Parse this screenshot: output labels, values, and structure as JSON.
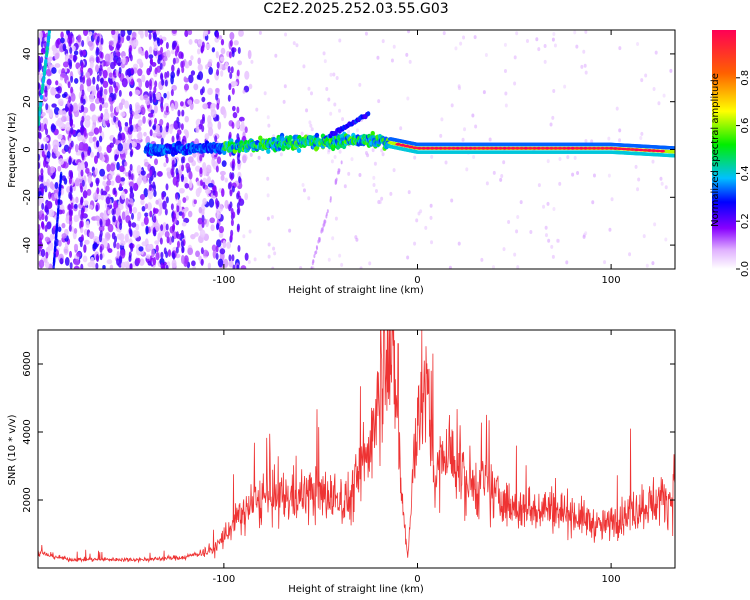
{
  "title": "C2E2.2025.252.03.55.G03",
  "colors": {
    "snr_line": "#ee3333",
    "axis": "#000000",
    "background": "#ffffff"
  },
  "chart_data": [
    {
      "type": "heatmap",
      "title": "C2E2.2025.252.03.55.G03",
      "xlabel": "Height of straight line (km)",
      "ylabel": "Frequency (Hz)",
      "xlim": [
        -196,
        133
      ],
      "ylim": [
        -50,
        50
      ],
      "xticks": [
        -100,
        0,
        100
      ],
      "xtick_labels": [
        "-100",
        "0",
        "100"
      ],
      "yticks": [
        -40,
        -20,
        0,
        20,
        40
      ],
      "ytick_labels": [
        "-40",
        "-20",
        "0",
        "20",
        "40"
      ],
      "colorbar": {
        "label": "Normalized spectral amplitude",
        "range": [
          0,
          1
        ],
        "ticks": [
          0.0,
          0.2,
          0.4,
          0.6,
          0.8
        ],
        "tick_labels": [
          "0.0",
          "0.2",
          "0.4",
          "0.6",
          "0.8"
        ]
      },
      "ridge": {
        "description_points_x": [
          -196,
          -130,
          -100,
          -60,
          -30,
          -15,
          0,
          50,
          100,
          133
        ],
        "frequency_hz": [
          0,
          0,
          1,
          3,
          4,
          3,
          0.5,
          0.5,
          0.5,
          -1
        ]
      }
    },
    {
      "type": "line",
      "xlabel": "Height of straight line (km)",
      "ylabel": "SNR (10 * v/v)",
      "xlim": [
        -196,
        133
      ],
      "ylim": [
        0,
        7000
      ],
      "xticks": [
        -100,
        0,
        100
      ],
      "xtick_labels": [
        "-100",
        "0",
        "100"
      ],
      "yticks": [
        2000,
        4000,
        6000
      ],
      "ytick_labels": [
        "2000",
        "4000",
        "6000"
      ],
      "series": [
        {
          "name": "SNR",
          "x": [
            -196,
            -180,
            -160,
            -140,
            -120,
            -105,
            -95,
            -85,
            -75,
            -65,
            -55,
            -45,
            -35,
            -25,
            -20,
            -17,
            -12,
            -8,
            -5,
            -2,
            0,
            3,
            6,
            9,
            15,
            25,
            35,
            50,
            65,
            80,
            95,
            105,
            115,
            125,
            133
          ],
          "values": [
            450,
            250,
            250,
            250,
            320,
            550,
            1300,
            1900,
            2000,
            2100,
            2200,
            2100,
            2000,
            3500,
            5500,
            6800,
            6000,
            2000,
            300,
            2800,
            4800,
            5000,
            4900,
            2500,
            3500,
            2500,
            2400,
            1700,
            1800,
            1600,
            1200,
            1500,
            1800,
            2000,
            2100
          ],
          "peaks": {
            "x": [
              -17,
              -10,
              -2,
              22,
              27,
              110
            ],
            "values": [
              6900,
              6600,
              3700,
              4200,
              3600,
              4100
            ]
          }
        }
      ]
    }
  ]
}
